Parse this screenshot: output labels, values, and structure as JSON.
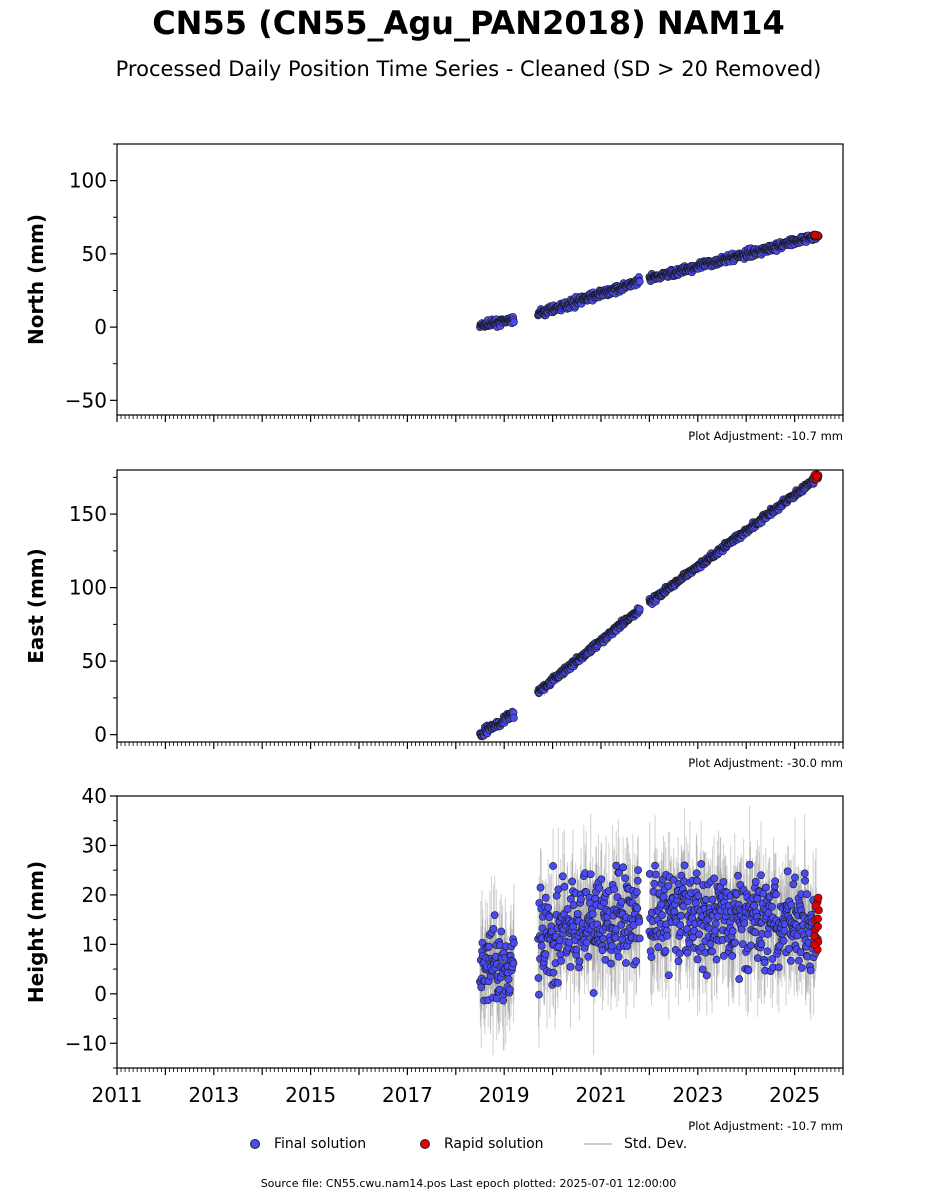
{
  "title": "CN55 (CN55_Agu_PAN2018) NAM14",
  "subtitle": "Processed Daily Position Time Series - Cleaned (SD > 20 Removed)",
  "footer": "Source file: CN55.cwu.nam14.pos  Last epoch plotted: 2025-07-01 12:00:00",
  "legend": {
    "final": "Final solution",
    "rapid": "Rapid solution",
    "std": "Std. Dev."
  },
  "colors": {
    "final": "#4a4af5",
    "rapid": "#e00000",
    "std": "#c8c8c8",
    "marker_edge": "#1a1a1a"
  },
  "chart_data": [
    {
      "type": "scatter",
      "ylabel": "North (mm)",
      "adjustment": "Plot Adjustment: -10.7 mm",
      "ylim": [
        -60,
        125
      ],
      "yticks": [
        -50,
        0,
        50,
        100
      ],
      "xlim": [
        2011,
        2026
      ],
      "show_xticklabels": false,
      "segments": [
        {
          "x": [
            2018.5,
            2019.2
          ],
          "y": [
            1,
            5
          ],
          "noise": 1.5
        },
        {
          "x": [
            2019.7,
            2021.8
          ],
          "y": [
            9,
            31
          ],
          "noise": 1.8
        },
        {
          "x": [
            2022.0,
            2025.45
          ],
          "y": [
            33,
            62
          ],
          "noise": 1.8
        }
      ],
      "std_amp": 1.5,
      "rapid": {
        "x": [
          2025.4,
          2025.5
        ],
        "y": [
          62,
          63
        ],
        "noise": 0.6
      }
    },
    {
      "type": "scatter",
      "ylabel": "East (mm)",
      "adjustment": "Plot Adjustment: -30.0 mm",
      "ylim": [
        -5,
        180
      ],
      "yticks": [
        0,
        50,
        100,
        150
      ],
      "xlim": [
        2011,
        2026
      ],
      "show_xticklabels": false,
      "segments": [
        {
          "x": [
            2018.5,
            2019.2
          ],
          "y": [
            0,
            14
          ],
          "noise": 2
        },
        {
          "x": [
            2019.7,
            2021.8
          ],
          "y": [
            29,
            85
          ],
          "noise": 1.5
        },
        {
          "x": [
            2022.0,
            2025.45
          ],
          "y": [
            90,
            174
          ],
          "noise": 1.5
        }
      ],
      "std_amp": 3,
      "rapid": {
        "x": [
          2025.4,
          2025.5
        ],
        "y": [
          173,
          177
        ],
        "noise": 1.2
      }
    },
    {
      "type": "scatter",
      "ylabel": "Height (mm)",
      "adjustment": "Plot Adjustment: -10.7 mm",
      "ylim": [
        -15,
        40
      ],
      "yticks": [
        -10,
        0,
        10,
        20,
        30,
        40
      ],
      "xlim": [
        2011,
        2026
      ],
      "show_xticklabels": true,
      "xticks": [
        2011,
        2013,
        2015,
        2017,
        2019,
        2021,
        2023,
        2025
      ],
      "segments": [
        {
          "x": [
            2018.5,
            2019.2
          ],
          "y": [
            6,
            6
          ],
          "noise": 6
        },
        {
          "x": [
            2019.7,
            2021.8
          ],
          "y": [
            12,
            16
          ],
          "noise": 7
        },
        {
          "x": [
            2022.0,
            2025.45
          ],
          "y": [
            16,
            15
          ],
          "noise": 6.5
        }
      ],
      "std_amp": 9,
      "rapid": {
        "x": [
          2025.4,
          2025.5
        ],
        "y": [
          8,
          20
        ],
        "noise": 4
      }
    }
  ]
}
